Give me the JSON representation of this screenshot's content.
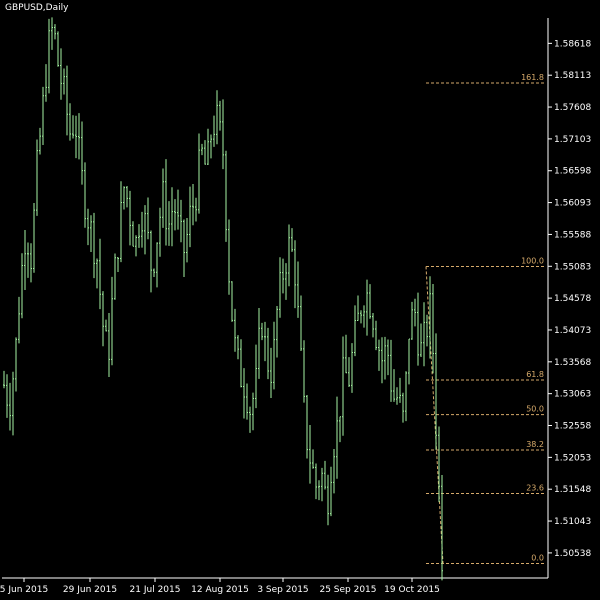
{
  "chart_data": {
    "type": "ohlc",
    "title": "GBPUSD,Daily",
    "colors": {
      "background": "#000000",
      "bars": "#a6f5a3",
      "axis_text": "#ffffff",
      "axis_line": "#ffffff",
      "fib_line": "#d5a96a",
      "fib_text": "#d5a96a"
    },
    "y_axis": {
      "position": "right",
      "min": 1.5014,
      "max": 1.5902,
      "ticks": [
        "1.58618",
        "1.58113",
        "1.57608",
        "1.57103",
        "1.56598",
        "1.56093",
        "1.55588",
        "1.55083",
        "1.54578",
        "1.54073",
        "1.53568",
        "1.53063",
        "1.52558",
        "1.52053",
        "1.51548",
        "1.51043",
        "1.50538"
      ]
    },
    "x_axis": {
      "labels": [
        "5 Jun 2015",
        "29 Jun 2015",
        "21 Jul 2015",
        "12 Aug 2015",
        "3 Sep 2015",
        "25 Sep 2015",
        "19 Oct 2015"
      ]
    },
    "fibonacci": {
      "high": 1.5508,
      "low": 1.5037,
      "levels": [
        {
          "label": "161.8",
          "value": 1.5799
        },
        {
          "label": "100.0",
          "value": 1.5508
        },
        {
          "label": "61.8",
          "value": 1.5328
        },
        {
          "label": "50.0",
          "value": 1.5273
        },
        {
          "label": "38.2",
          "value": 1.5217
        },
        {
          "label": "23.6",
          "value": 1.5148
        },
        {
          "label": "0.0",
          "value": 1.5037
        }
      ]
    },
    "close_path": [
      [
        0,
        1.532
      ],
      [
        2,
        1.529
      ],
      [
        4,
        1.536
      ],
      [
        6,
        1.548
      ],
      [
        8,
        1.557
      ],
      [
        10,
        1.552
      ],
      [
        12,
        1.566
      ],
      [
        14,
        1.575
      ],
      [
        16,
        1.585
      ],
      [
        18,
        1.589
      ],
      [
        20,
        1.582
      ],
      [
        22,
        1.578
      ],
      [
        24,
        1.572
      ],
      [
        26,
        1.574
      ],
      [
        28,
        1.566
      ],
      [
        30,
        1.56
      ],
      [
        32,
        1.556
      ],
      [
        34,
        1.552
      ],
      [
        36,
        1.542
      ],
      [
        38,
        1.536
      ],
      [
        40,
        1.548
      ],
      [
        42,
        1.556
      ],
      [
        44,
        1.564
      ],
      [
        46,
        1.559
      ],
      [
        48,
        1.554
      ],
      [
        50,
        1.56
      ],
      [
        52,
        1.557
      ],
      [
        54,
        1.55
      ],
      [
        56,
        1.556
      ],
      [
        58,
        1.562
      ],
      [
        60,
        1.557
      ],
      [
        62,
        1.561
      ],
      [
        64,
        1.556
      ],
      [
        66,
        1.553
      ],
      [
        68,
        1.559
      ],
      [
        70,
        1.562
      ],
      [
        72,
        1.569
      ],
      [
        74,
        1.566
      ],
      [
        76,
        1.573
      ],
      [
        78,
        1.574
      ],
      [
        80,
        1.569
      ],
      [
        82,
        1.551
      ],
      [
        84,
        1.539
      ],
      [
        86,
        1.534
      ],
      [
        88,
        1.532
      ],
      [
        90,
        1.528
      ],
      [
        92,
        1.532
      ],
      [
        94,
        1.543
      ],
      [
        96,
        1.536
      ],
      [
        98,
        1.534
      ],
      [
        100,
        1.545
      ],
      [
        102,
        1.55
      ],
      [
        104,
        1.554
      ],
      [
        106,
        1.552
      ],
      [
        108,
        1.539
      ],
      [
        110,
        1.525
      ],
      [
        112,
        1.52
      ],
      [
        114,
        1.516
      ],
      [
        116,
        1.518
      ],
      [
        118,
        1.513
      ],
      [
        120,
        1.522
      ],
      [
        122,
        1.526
      ],
      [
        124,
        1.534
      ],
      [
        126,
        1.533
      ],
      [
        128,
        1.539
      ],
      [
        130,
        1.544
      ],
      [
        132,
        1.547
      ],
      [
        134,
        1.545
      ],
      [
        136,
        1.54
      ],
      [
        138,
        1.536
      ],
      [
        140,
        1.538
      ],
      [
        142,
        1.53
      ],
      [
        144,
        1.53
      ],
      [
        146,
        1.526
      ],
      [
        148,
        1.541
      ],
      [
        150,
        1.544
      ],
      [
        152,
        1.537
      ],
      [
        154,
        1.54
      ],
      [
        156,
        1.545
      ],
      [
        158,
        1.524
      ],
      [
        160,
        1.505
      ]
    ]
  }
}
